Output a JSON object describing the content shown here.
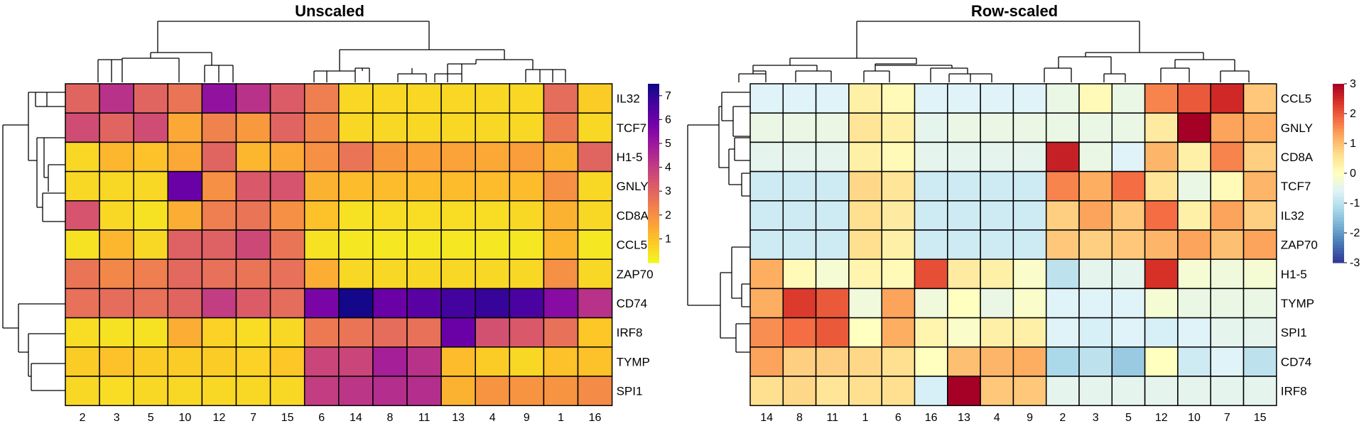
{
  "chart_data": [
    {
      "type": "heatmap",
      "title": "Unscaled",
      "columns": [
        "2",
        "3",
        "5",
        "10",
        "12",
        "7",
        "15",
        "6",
        "14",
        "8",
        "11",
        "13",
        "4",
        "9",
        "1",
        "16"
      ],
      "rows": [
        "IL32",
        "TCF7",
        "H1-5",
        "GNLY",
        "CD8A",
        "CCL5",
        "ZAP70",
        "CD74",
        "IRF8",
        "TYMP",
        "SPI1"
      ],
      "values": [
        [
          3.0,
          4.3,
          3.0,
          2.6,
          5.2,
          4.3,
          3.2,
          2.4,
          0.6,
          0.6,
          0.6,
          0.6,
          0.6,
          0.6,
          2.8,
          0.8
        ],
        [
          3.6,
          3.0,
          3.6,
          1.5,
          2.3,
          1.8,
          3.0,
          2.2,
          0.6,
          0.6,
          0.6,
          0.6,
          0.6,
          0.6,
          2.5,
          0.6
        ],
        [
          0.6,
          1.2,
          1.0,
          1.5,
          3.0,
          1.2,
          1.5,
          2.0,
          2.6,
          1.8,
          1.6,
          1.6,
          1.5,
          1.7,
          1.3,
          3.0
        ],
        [
          0.6,
          0.6,
          0.6,
          6.0,
          2.0,
          3.3,
          3.4,
          1.3,
          1.1,
          1.1,
          1.1,
          1.1,
          1.1,
          1.1,
          2.0,
          0.6
        ],
        [
          3.4,
          0.6,
          0.4,
          1.4,
          2.4,
          2.6,
          2.0,
          1.0,
          0.4,
          0.5,
          0.5,
          0.5,
          0.5,
          0.6,
          1.3,
          0.6
        ],
        [
          0.4,
          1.2,
          0.6,
          3.1,
          3.1,
          3.7,
          2.6,
          0.4,
          0.3,
          0.3,
          0.3,
          0.3,
          0.3,
          0.3,
          1.2,
          0.3
        ],
        [
          2.6,
          2.2,
          2.4,
          2.9,
          2.7,
          2.6,
          2.7,
          1.4,
          0.6,
          0.6,
          0.6,
          0.6,
          0.6,
          0.6,
          2.0,
          0.6
        ],
        [
          2.7,
          2.8,
          2.7,
          3.0,
          4.0,
          3.2,
          2.8,
          5.7,
          7.4,
          6.0,
          6.3,
          6.7,
          6.9,
          6.6,
          5.4,
          4.3
        ],
        [
          0.5,
          0.4,
          0.4,
          1.4,
          0.7,
          0.5,
          0.6,
          2.5,
          2.6,
          2.8,
          2.7,
          6.0,
          3.5,
          3.3,
          2.7,
          0.9
        ],
        [
          0.8,
          1.0,
          0.8,
          0.8,
          0.8,
          0.7,
          0.9,
          3.8,
          3.8,
          4.8,
          4.3,
          1.1,
          0.8,
          0.6,
          1.0,
          1.0
        ],
        [
          0.6,
          0.5,
          0.6,
          0.6,
          0.6,
          0.6,
          0.6,
          4.0,
          4.2,
          4.4,
          4.4,
          1.3,
          1.9,
          1.9,
          1.9,
          2.1
        ]
      ],
      "legend": {
        "ticks": [
          1,
          2,
          3,
          4,
          5,
          6,
          7
        ],
        "min": 0,
        "max": 7.5,
        "palette": "plasma-reversed"
      }
    },
    {
      "type": "heatmap",
      "title": "Row-scaled",
      "columns": [
        "14",
        "8",
        "11",
        "1",
        "6",
        "16",
        "13",
        "4",
        "9",
        "2",
        "3",
        "5",
        "12",
        "10",
        "7",
        "15"
      ],
      "rows": [
        "CCL5",
        "GNLY",
        "CD8A",
        "TCF7",
        "IL32",
        "ZAP70",
        "H1-5",
        "TYMP",
        "SPI1",
        "CD74",
        "IRF8"
      ],
      "values": [
        [
          -0.6,
          -0.6,
          -0.6,
          0.3,
          0.1,
          -0.6,
          -0.6,
          -0.6,
          -0.6,
          -0.4,
          0.1,
          -0.4,
          1.6,
          2.0,
          2.5,
          0.9
        ],
        [
          -0.4,
          -0.4,
          -0.4,
          0.5,
          0.3,
          -0.5,
          -0.4,
          -0.4,
          -0.4,
          -0.4,
          -0.4,
          -0.4,
          0.4,
          3.0,
          1.3,
          1.2
        ],
        [
          -0.5,
          -0.5,
          -0.5,
          0.3,
          0.1,
          -0.5,
          -0.5,
          -0.5,
          -0.5,
          2.6,
          -0.4,
          -0.6,
          1.1,
          0.3,
          1.6,
          0.8
        ],
        [
          -0.8,
          -0.8,
          -0.8,
          0.7,
          0.5,
          -0.8,
          -0.8,
          -0.8,
          -0.8,
          1.6,
          1.2,
          1.8,
          0.5,
          -0.4,
          0.1,
          1.1
        ],
        [
          -0.8,
          -0.8,
          -0.8,
          0.6,
          0.4,
          -0.8,
          -0.8,
          -0.8,
          -0.8,
          0.8,
          1.3,
          0.9,
          1.8,
          0.3,
          1.3,
          0.8
        ],
        [
          -0.8,
          -0.8,
          -0.8,
          0.6,
          0.3,
          -0.8,
          -0.8,
          -0.8,
          -0.8,
          0.9,
          0.8,
          0.9,
          1.1,
          1.3,
          1.0,
          1.3
        ],
        [
          1.2,
          0.1,
          -0.2,
          0.2,
          0.1,
          2.1,
          0.4,
          0.3,
          -0.1,
          -1.0,
          -0.5,
          -0.5,
          2.4,
          -0.2,
          -0.3,
          -0.2
        ],
        [
          1.2,
          2.3,
          2.0,
          -0.3,
          1.3,
          -0.3,
          0.0,
          -0.4,
          -0.1,
          -0.6,
          -0.6,
          -0.6,
          -0.2,
          -0.4,
          -0.4,
          -0.4
        ],
        [
          1.5,
          1.8,
          2.0,
          0.0,
          1.2,
          0.2,
          -0.1,
          0.3,
          0.3,
          -0.6,
          -0.7,
          -0.6,
          -0.7,
          -0.6,
          -0.5,
          -0.5
        ],
        [
          1.3,
          0.8,
          0.8,
          0.7,
          0.6,
          0.0,
          1.0,
          1.1,
          1.2,
          -1.2,
          -1.0,
          -1.4,
          0.0,
          -0.8,
          -0.6,
          -1.0
        ],
        [
          0.6,
          0.7,
          0.5,
          0.6,
          0.6,
          -0.7,
          3.0,
          0.9,
          0.9,
          -0.5,
          -0.5,
          -0.5,
          -0.5,
          -0.5,
          -0.5,
          -0.5
        ]
      ],
      "legend": {
        "ticks": [
          -3,
          -2,
          -1,
          0,
          1,
          2,
          3
        ],
        "min": -3,
        "max": 3,
        "palette": "RdYlBu-reversed"
      }
    }
  ],
  "palettes": {
    "plasma-reversed": [
      "#f0f921",
      "#fdca26",
      "#fb9f3a",
      "#ed7953",
      "#d8576b",
      "#bd3786",
      "#9c179e",
      "#7201a8",
      "#46039f",
      "#0d0887"
    ],
    "RdYlBu-reversed": [
      "#313695",
      "#4575b4",
      "#74add1",
      "#abd9e9",
      "#e0f3f8",
      "#ffffbf",
      "#fee090",
      "#fdae61",
      "#f46d43",
      "#d73027",
      "#a50026"
    ]
  }
}
